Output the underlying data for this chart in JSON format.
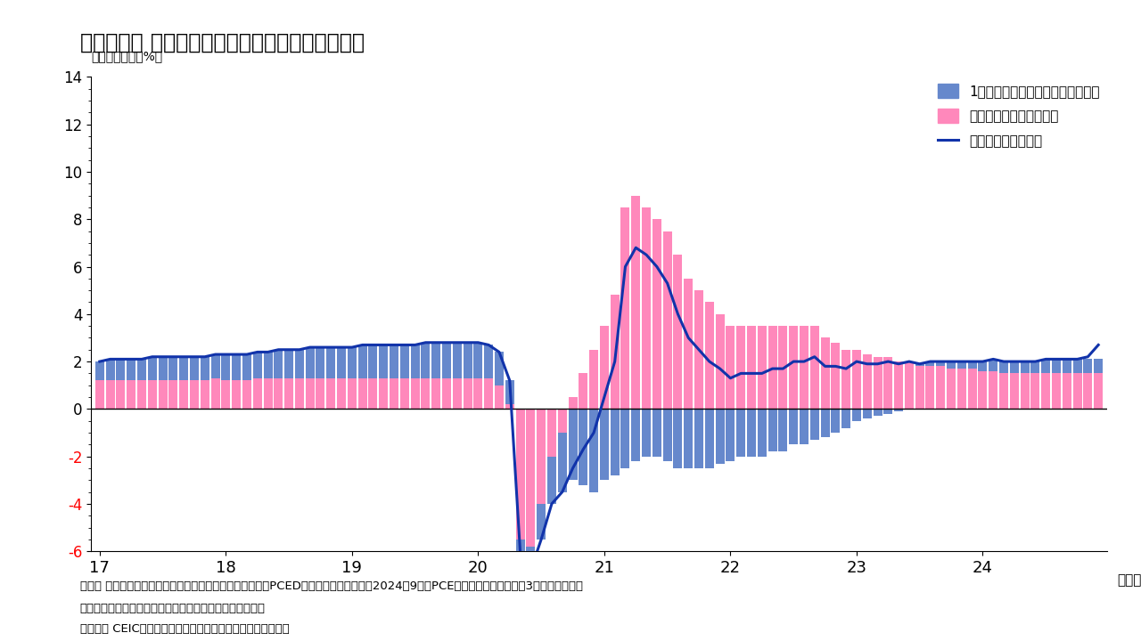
{
  "title": "（図表１） 米国：民間総賃金の実質増加率の推移",
  "ylabel_annotation": "（前年同月比、%）",
  "xlabel_annotation": "（年）",
  "legend1": "1人あたり実質賃金増加による寄与",
  "legend2": "雇用者の変化による寄与",
  "legend3": "民間部門実質総賃金",
  "note1": "（注） 見やすさのため、縦軸を限定している。実質化にはPCEDデフレーターを使用、2024年9月のPCEデフレーターは、過去3カ月間の前月比",
  "note2": "　　の平均での伸びが続くと仮定してインベスコが試算。",
  "note3": "（出所） CEICよりインベスコ作成。一部はインベスコが推計",
  "bar_color_blue": "#6688CC",
  "bar_color_pink": "#FF88BB",
  "line_color": "#1133AA",
  "ylim_min": -6,
  "ylim_max": 14,
  "x_tick_labels": [
    "17",
    "18",
    "19",
    "20",
    "21",
    "22",
    "23",
    "24"
  ],
  "per_capita": [
    0.8,
    0.9,
    0.9,
    0.9,
    0.9,
    1.0,
    1.0,
    1.0,
    1.0,
    1.0,
    1.0,
    1.0,
    1.1,
    1.1,
    1.1,
    1.1,
    1.1,
    1.2,
    1.2,
    1.2,
    1.3,
    1.3,
    1.3,
    1.3,
    1.3,
    1.4,
    1.4,
    1.4,
    1.4,
    1.4,
    1.4,
    1.5,
    1.5,
    1.5,
    1.5,
    1.5,
    1.5,
    1.4,
    1.4,
    1.0,
    -0.5,
    -1.0,
    -1.5,
    -2.0,
    -2.5,
    -3.0,
    -3.2,
    -3.5,
    -3.0,
    -2.8,
    -2.5,
    -2.2,
    -2.0,
    -2.0,
    -2.2,
    -2.5,
    -2.5,
    -2.5,
    -2.5,
    -2.3,
    -2.2,
    -2.0,
    -2.0,
    -2.0,
    -1.8,
    -1.8,
    -1.5,
    -1.5,
    -1.3,
    -1.2,
    -1.0,
    -0.8,
    -0.5,
    -0.4,
    -0.3,
    -0.2,
    -0.1,
    0.0,
    0.1,
    0.2,
    0.2,
    0.3,
    0.3,
    0.3,
    0.4,
    0.5,
    0.5,
    0.5,
    0.5,
    0.5,
    0.6,
    0.6,
    0.6,
    0.6,
    0.6,
    0.6
  ],
  "employment": [
    1.2,
    1.2,
    1.2,
    1.2,
    1.2,
    1.2,
    1.2,
    1.2,
    1.2,
    1.2,
    1.2,
    1.3,
    1.2,
    1.2,
    1.2,
    1.3,
    1.3,
    1.3,
    1.3,
    1.3,
    1.3,
    1.3,
    1.3,
    1.3,
    1.3,
    1.3,
    1.3,
    1.3,
    1.3,
    1.3,
    1.3,
    1.3,
    1.3,
    1.3,
    1.3,
    1.3,
    1.3,
    1.3,
    1.0,
    0.2,
    -5.5,
    -5.8,
    -4.0,
    -2.0,
    -1.0,
    0.5,
    1.5,
    2.5,
    3.5,
    4.8,
    8.5,
    9.0,
    8.5,
    8.0,
    7.5,
    6.5,
    5.5,
    5.0,
    4.5,
    4.0,
    3.5,
    3.5,
    3.5,
    3.5,
    3.5,
    3.5,
    3.5,
    3.5,
    3.5,
    3.0,
    2.8,
    2.5,
    2.5,
    2.3,
    2.2,
    2.2,
    2.0,
    2.0,
    1.8,
    1.8,
    1.8,
    1.7,
    1.7,
    1.7,
    1.6,
    1.6,
    1.5,
    1.5,
    1.5,
    1.5,
    1.5,
    1.5,
    1.5,
    1.5,
    1.5,
    1.5
  ],
  "total_line": [
    2.0,
    2.1,
    2.1,
    2.1,
    2.1,
    2.2,
    2.2,
    2.2,
    2.2,
    2.2,
    2.2,
    2.3,
    2.3,
    2.3,
    2.3,
    2.4,
    2.4,
    2.5,
    2.5,
    2.5,
    2.6,
    2.6,
    2.6,
    2.6,
    2.6,
    2.7,
    2.7,
    2.7,
    2.7,
    2.7,
    2.7,
    2.8,
    2.8,
    2.8,
    2.8,
    2.8,
    2.8,
    2.7,
    2.4,
    1.2,
    -6.0,
    -6.8,
    -5.5,
    -4.0,
    -3.5,
    -2.5,
    -1.7,
    -1.0,
    0.5,
    2.0,
    6.0,
    6.8,
    6.5,
    6.0,
    5.3,
    4.0,
    3.0,
    2.5,
    2.0,
    1.7,
    1.3,
    1.5,
    1.5,
    1.5,
    1.7,
    1.7,
    2.0,
    2.0,
    2.2,
    1.8,
    1.8,
    1.7,
    2.0,
    1.9,
    1.9,
    2.0,
    1.9,
    2.0,
    1.9,
    2.0,
    2.0,
    2.0,
    2.0,
    2.0,
    2.0,
    2.1,
    2.0,
    2.0,
    2.0,
    2.0,
    2.1,
    2.1,
    2.1,
    2.1,
    2.2,
    2.7
  ]
}
